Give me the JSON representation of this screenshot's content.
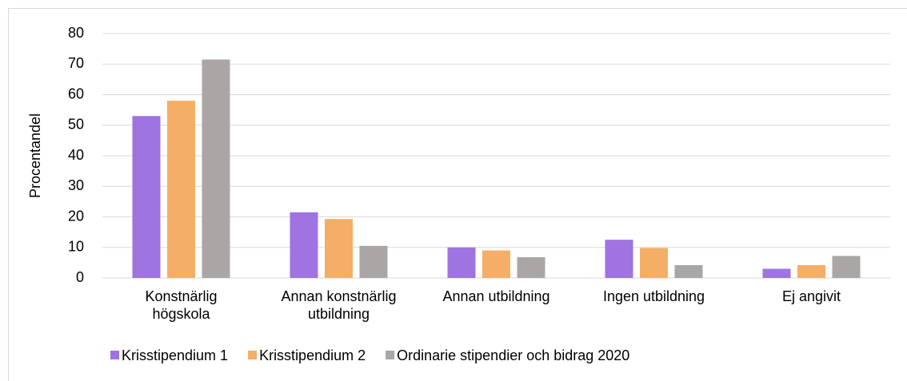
{
  "chart_data": {
    "type": "bar",
    "y_label": "Procentandel",
    "categories": [
      "Konstnärlig högskola",
      "Annan konstnärlig utbildning",
      "Annan utbildning",
      "Ingen utbildning",
      "Ej angivit"
    ],
    "series": [
      {
        "name": "Krisstipendium 1",
        "color": "#9f73e0",
        "values": [
          53,
          21.5,
          10,
          12.5,
          3
        ]
      },
      {
        "name": "Krisstipendium 2",
        "color": "#f5ae65",
        "values": [
          58,
          19.3,
          9,
          9.8,
          4.2
        ]
      },
      {
        "name": "Ordinarie stipendier och bidrag 2020",
        "color": "#aaa6a6",
        "values": [
          71.5,
          10.5,
          6.8,
          4.2,
          7.2
        ]
      }
    ],
    "ylim": [
      0,
      80
    ],
    "yticks": [
      0,
      10,
      20,
      30,
      40,
      50,
      60,
      70,
      80
    ],
    "grid": true,
    "legend": "bottom"
  }
}
